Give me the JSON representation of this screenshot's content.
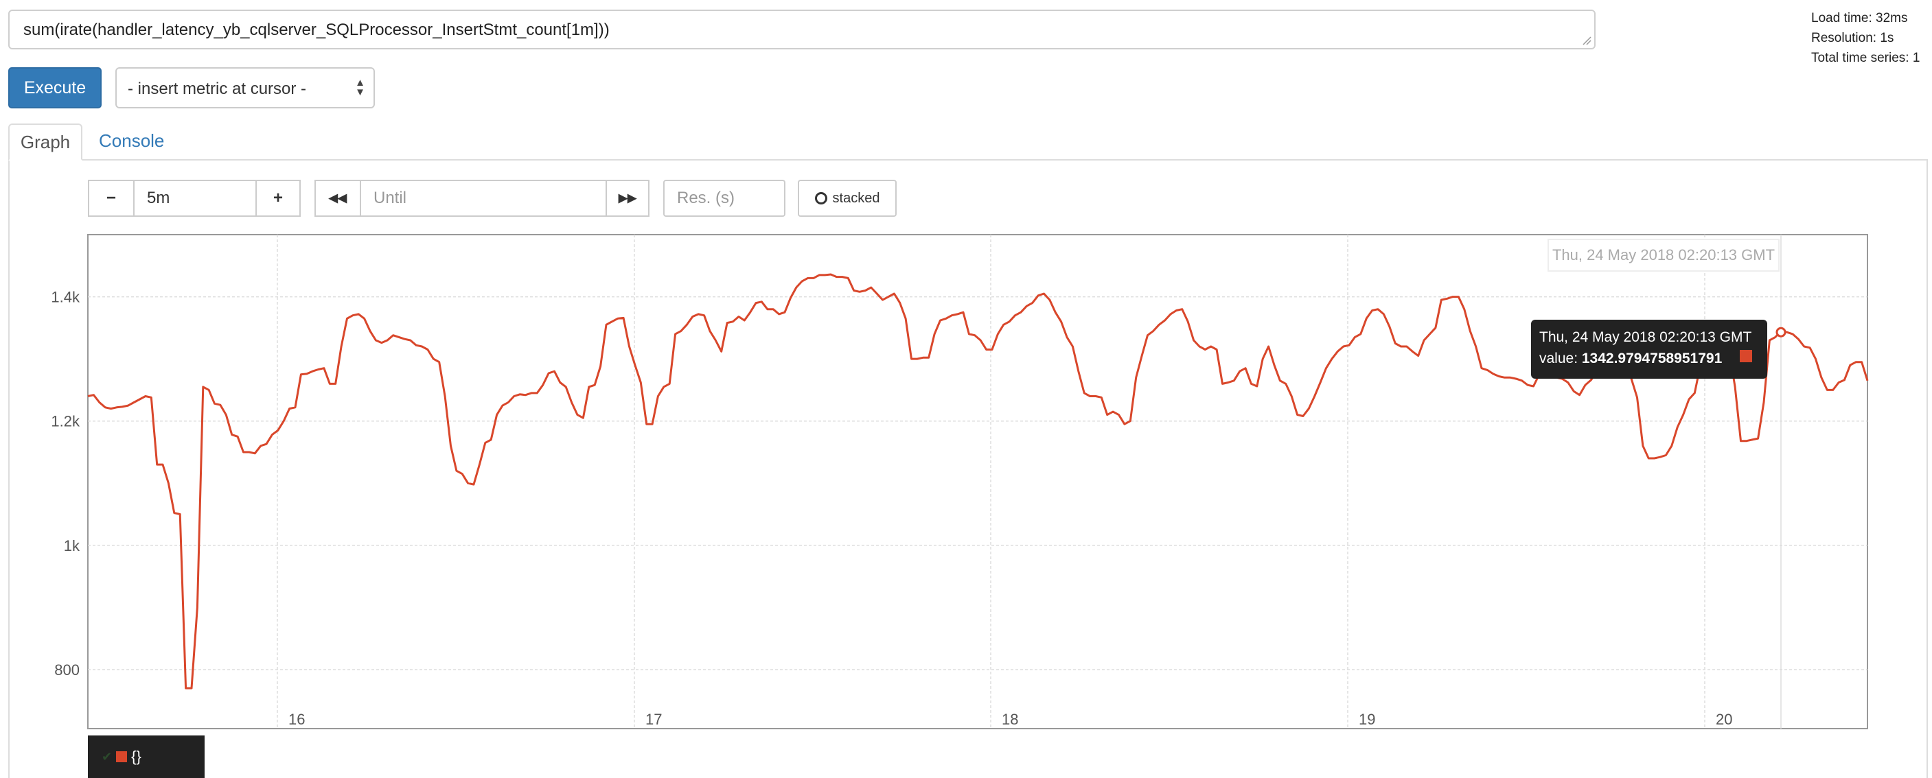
{
  "query": {
    "expression": "sum(irate(handler_latency_yb_cqlserver_SQLProcessor_InsertStmt_count[1m]))"
  },
  "stats": {
    "load_time": "Load time: 32ms",
    "resolution": "Resolution: 1s",
    "total_series": "Total time series: 1"
  },
  "controls": {
    "execute_label": "Execute",
    "metric_select": "- insert metric at cursor -",
    "range_value": "5m",
    "until_placeholder": "Until",
    "res_placeholder": "Res. (s)",
    "stacked_label": "stacked",
    "minus": "−",
    "plus": "+",
    "back": "◀◀",
    "forward": "▶▶"
  },
  "tabs": {
    "graph": "Graph",
    "console": "Console"
  },
  "hover": {
    "date_label": "Thu, 24 May 2018 02:20:13 GMT",
    "tooltip_date": "Thu, 24 May 2018 02:20:13 GMT",
    "tooltip_value_prefix": "value: ",
    "tooltip_value": "1342.9794758951791"
  },
  "legend": {
    "series_label": "{}"
  },
  "colors": {
    "series": "#d9472b",
    "accent": "#337ab7"
  },
  "chart_data": {
    "type": "line",
    "x_tick_labels": [
      "16",
      "17",
      "18",
      "19",
      "20"
    ],
    "y_tick_labels": [
      "800",
      "1k",
      "1.2k",
      "1.4k"
    ],
    "y_ticks": [
      800,
      1000,
      1200,
      1400
    ],
    "ylim": [
      705,
      1500
    ],
    "grid": true,
    "series": [
      {
        "values": [
          1240,
          1242,
          1230,
          1222,
          1220,
          1222,
          1223,
          1225,
          1230,
          1235,
          1240,
          1238,
          1130,
          1130,
          1100,
          1052,
          1050,
          770,
          770,
          900,
          1255,
          1250,
          1228,
          1226,
          1210,
          1178,
          1175,
          1150,
          1150,
          1148,
          1160,
          1163,
          1178,
          1185,
          1200,
          1220,
          1222,
          1275,
          1276,
          1280,
          1283,
          1285,
          1260,
          1260,
          1320,
          1365,
          1370,
          1372,
          1365,
          1345,
          1330,
          1326,
          1330,
          1338,
          1335,
          1332,
          1330,
          1322,
          1320,
          1315,
          1300,
          1295,
          1240,
          1160,
          1120,
          1115,
          1100,
          1098,
          1130,
          1165,
          1170,
          1210,
          1225,
          1230,
          1240,
          1243,
          1242,
          1245,
          1245,
          1258,
          1277,
          1280,
          1262,
          1255,
          1230,
          1210,
          1205,
          1255,
          1258,
          1288,
          1355,
          1360,
          1365,
          1366,
          1320,
          1290,
          1262,
          1195,
          1195,
          1240,
          1255,
          1260,
          1340,
          1345,
          1355,
          1368,
          1372,
          1370,
          1345,
          1330,
          1312,
          1358,
          1360,
          1368,
          1362,
          1375,
          1390,
          1392,
          1380,
          1380,
          1372,
          1375,
          1398,
          1415,
          1425,
          1430,
          1430,
          1435,
          1435,
          1436,
          1432,
          1432,
          1430,
          1410,
          1408,
          1410,
          1415,
          1405,
          1395,
          1400,
          1405,
          1390,
          1365,
          1300,
          1300,
          1302,
          1302,
          1340,
          1362,
          1365,
          1370,
          1372,
          1375,
          1340,
          1338,
          1330,
          1315,
          1315,
          1340,
          1355,
          1360,
          1370,
          1375,
          1385,
          1390,
          1402,
          1405,
          1395,
          1375,
          1360,
          1335,
          1320,
          1280,
          1245,
          1240,
          1240,
          1238,
          1210,
          1215,
          1210,
          1195,
          1200,
          1270,
          1305,
          1338,
          1345,
          1355,
          1362,
          1372,
          1378,
          1380,
          1360,
          1330,
          1320,
          1315,
          1320,
          1315,
          1260,
          1262,
          1265,
          1280,
          1285,
          1260,
          1256,
          1300,
          1320,
          1290,
          1265,
          1260,
          1240,
          1210,
          1208,
          1220,
          1240,
          1262,
          1285,
          1300,
          1312,
          1320,
          1322,
          1335,
          1340,
          1365,
          1378,
          1380,
          1372,
          1352,
          1325,
          1320,
          1320,
          1312,
          1305,
          1330,
          1340,
          1350,
          1395,
          1397,
          1400,
          1400,
          1380,
          1345,
          1320,
          1285,
          1282,
          1276,
          1272,
          1270,
          1270,
          1268,
          1265,
          1258,
          1256,
          1275,
          1280,
          1276,
          1270,
          1268,
          1262,
          1248,
          1242,
          1258,
          1266,
          1280,
          1290,
          1302,
          1314,
          1320,
          1300,
          1268,
          1238,
          1160,
          1140,
          1140,
          1142,
          1145,
          1160,
          1190,
          1210,
          1235,
          1245,
          1290,
          1320,
          1340,
          1352,
          1338,
          1312,
          1255,
          1168,
          1168,
          1170,
          1172,
          1230,
          1330,
          1335,
          1345,
          1343,
          1340,
          1332,
          1320,
          1318,
          1300,
          1270,
          1250,
          1250,
          1262,
          1266,
          1290,
          1295,
          1295,
          1265
        ]
      }
    ]
  }
}
